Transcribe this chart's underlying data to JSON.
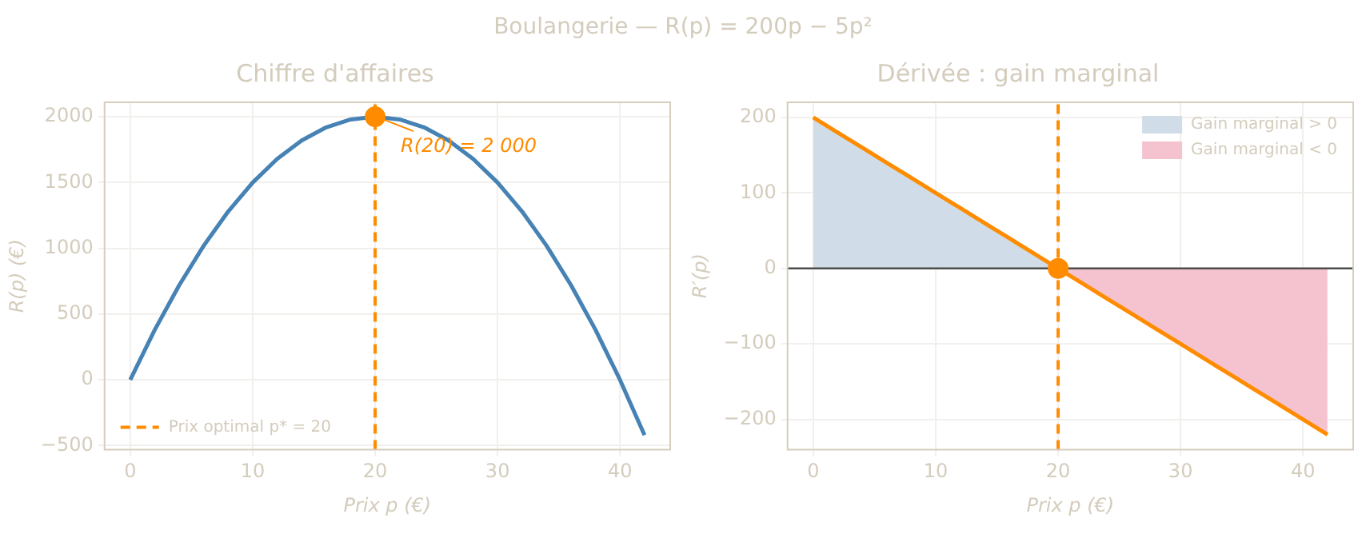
{
  "chart_data": [
    {
      "type": "line",
      "title": "Chiffre d'affaires",
      "xlabel": "Prix p (€)",
      "ylabel": "R(p) (€)",
      "annotations": [
        "Boulangerie — R(p) = 200p − 5p²",
        {
          "text": "R(20) = 2 000",
          "x": 20,
          "y": 2000
        }
      ],
      "x": [
        0,
        2,
        4,
        6,
        8,
        10,
        12,
        14,
        16,
        18,
        20,
        22,
        24,
        26,
        28,
        30,
        32,
        34,
        36,
        38,
        40,
        42
      ],
      "series": [
        {
          "color": "#4682b4",
          "values": [
            0,
            380,
            720,
            1020,
            1280,
            1500,
            1680,
            1820,
            1920,
            1980,
            2000,
            1980,
            1920,
            1820,
            1680,
            1500,
            1280,
            1020,
            720,
            380,
            0,
            -420
          ]
        },
        {
          "type": "scatter",
          "marker": "circle",
          "color": "#ff8c00",
          "x": [
            20
          ],
          "values": [
            2000
          ]
        }
      ],
      "ref_lines": [
        {
          "axis": "x",
          "value": 20,
          "label": "Prix optimal p* = 20",
          "color": "#ff8c00",
          "line_style": "dashed"
        }
      ],
      "xlim": [
        -2.1,
        44.1
      ],
      "xticks": [
        0,
        10,
        20,
        30,
        40
      ],
      "ylim": [
        -530,
        2110
      ],
      "yticks": [
        -500,
        0,
        500,
        1000,
        1500,
        2000
      ],
      "grid": true,
      "legend": "bottom left"
    },
    {
      "type": "line",
      "title": "Dérivée : gain marginal",
      "xlabel": "Prix p (€)",
      "ylabel": "R′(p)",
      "x": [
        0,
        2,
        4,
        6,
        8,
        10,
        12,
        14,
        16,
        18,
        20,
        22,
        24,
        26,
        28,
        30,
        32,
        34,
        36,
        38,
        40,
        42
      ],
      "series": [
        {
          "type": "area",
          "name": "Gain marginal > 0",
          "color": "#d0dde9",
          "x": [
            0,
            2,
            4,
            6,
            8,
            10,
            12,
            14,
            16,
            18,
            20
          ],
          "values": [
            200,
            180,
            160,
            140,
            120,
            100,
            80,
            60,
            40,
            20,
            0
          ]
        },
        {
          "type": "area",
          "name": "Gain marginal < 0",
          "color": "#f5c3cf",
          "x": [
            20,
            22,
            24,
            26,
            28,
            30,
            32,
            34,
            36,
            38,
            40,
            42
          ],
          "values": [
            0,
            -20,
            -40,
            -60,
            -80,
            -100,
            -120,
            -140,
            -160,
            -180,
            -200,
            -220
          ]
        },
        {
          "color": "#ff8c00",
          "values": [
            200,
            180,
            160,
            140,
            120,
            100,
            80,
            60,
            40,
            20,
            0,
            -20,
            -40,
            -60,
            -80,
            -100,
            -120,
            -140,
            -160,
            -180,
            -200,
            -220
          ]
        },
        {
          "type": "scatter",
          "marker": "circle",
          "color": "#ff8c00",
          "x": [
            20
          ],
          "values": [
            0
          ]
        }
      ],
      "ref_lines": [
        {
          "axis": "x",
          "value": 20,
          "color": "#ff8c00",
          "line_style": "dashed"
        },
        {
          "axis": "y",
          "value": 0,
          "color": "#4d4d4d",
          "line_style": "solid"
        }
      ],
      "xlim": [
        -2.1,
        44.1
      ],
      "xticks": [
        0,
        10,
        20,
        30,
        40
      ],
      "ylim": [
        -240,
        220
      ],
      "yticks": [
        -200,
        -100,
        0,
        100,
        200
      ],
      "grid": true,
      "legend": "top right"
    }
  ]
}
